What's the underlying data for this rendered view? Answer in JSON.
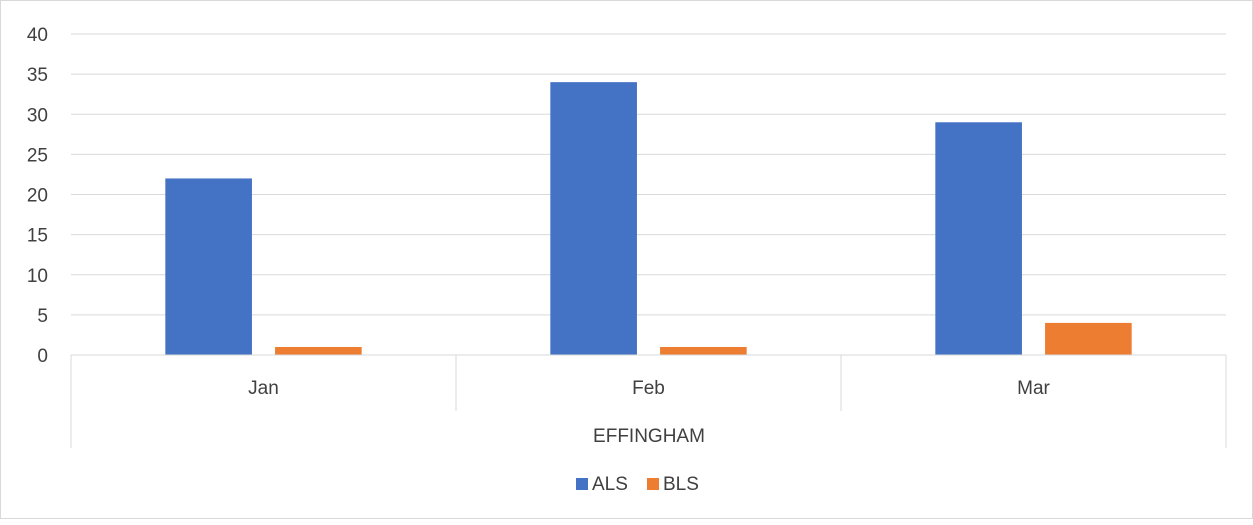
{
  "chart_data": {
    "type": "bar",
    "categories": [
      "Jan",
      "Feb",
      "Mar"
    ],
    "group_label": "EFFINGHAM",
    "series": [
      {
        "name": "ALS",
        "color": "#4472c4",
        "values": [
          22,
          34,
          29
        ]
      },
      {
        "name": "BLS",
        "color": "#ed7d31",
        "values": [
          1,
          1,
          4
        ]
      }
    ],
    "ylim": [
      0,
      40
    ],
    "yticks": [
      0,
      5,
      10,
      15,
      20,
      25,
      30,
      35,
      40
    ],
    "grid": true,
    "legend": "bottom"
  }
}
